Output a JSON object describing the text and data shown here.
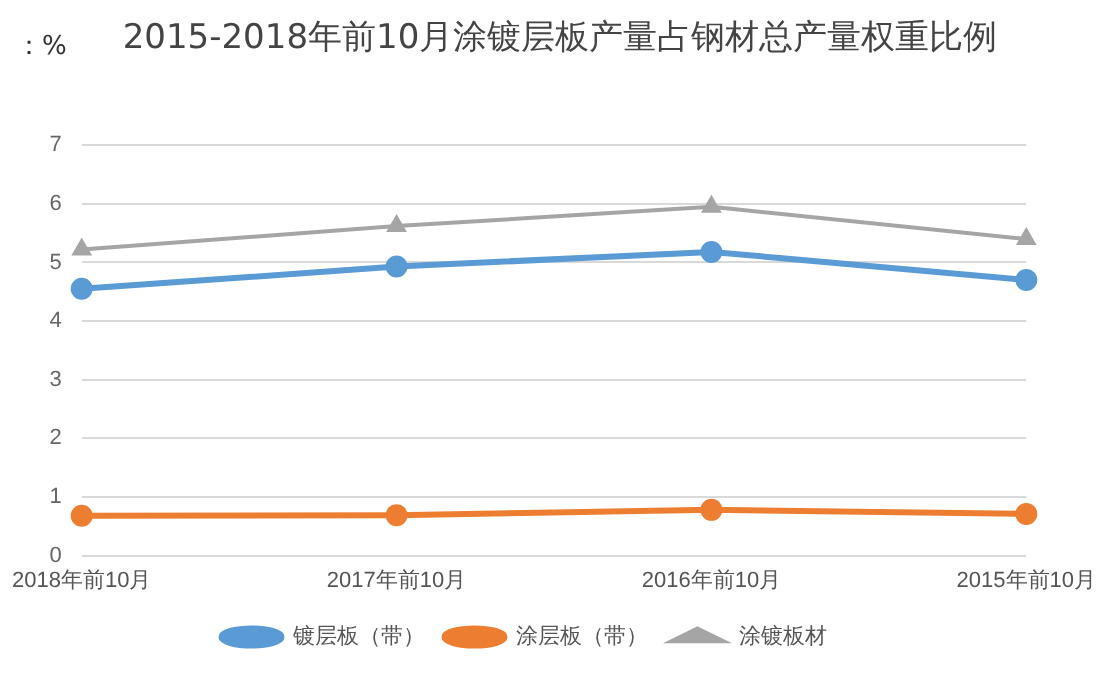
{
  "chart_data": {
    "type": "line",
    "title": "2015-2018年前10月涂镀层板产量占钢材总产量权重比例",
    "ylabel": "：%",
    "categories": [
      "2018年前10月",
      "2017年前10月",
      "2016年前10月",
      "2015年前10月"
    ],
    "series": [
      {
        "name": "镀层板（带）",
        "color": "#5b9bd5",
        "values": [
          4.55,
          4.93,
          5.18,
          4.7
        ],
        "marker": "circle"
      },
      {
        "name": "涂层板（带）",
        "color": "#ed7d31",
        "values": [
          0.68,
          0.69,
          0.78,
          0.71
        ],
        "marker": "circle"
      },
      {
        "name": "涂镀板材",
        "color": "#a5a5a5",
        "values": [
          5.22,
          5.62,
          5.95,
          5.4
        ],
        "marker": "triangle"
      }
    ],
    "ylim": [
      0,
      7
    ],
    "yticks": [
      0,
      1,
      2,
      3,
      4,
      5,
      6,
      7
    ],
    "grid": "y",
    "legend": "bottom"
  }
}
